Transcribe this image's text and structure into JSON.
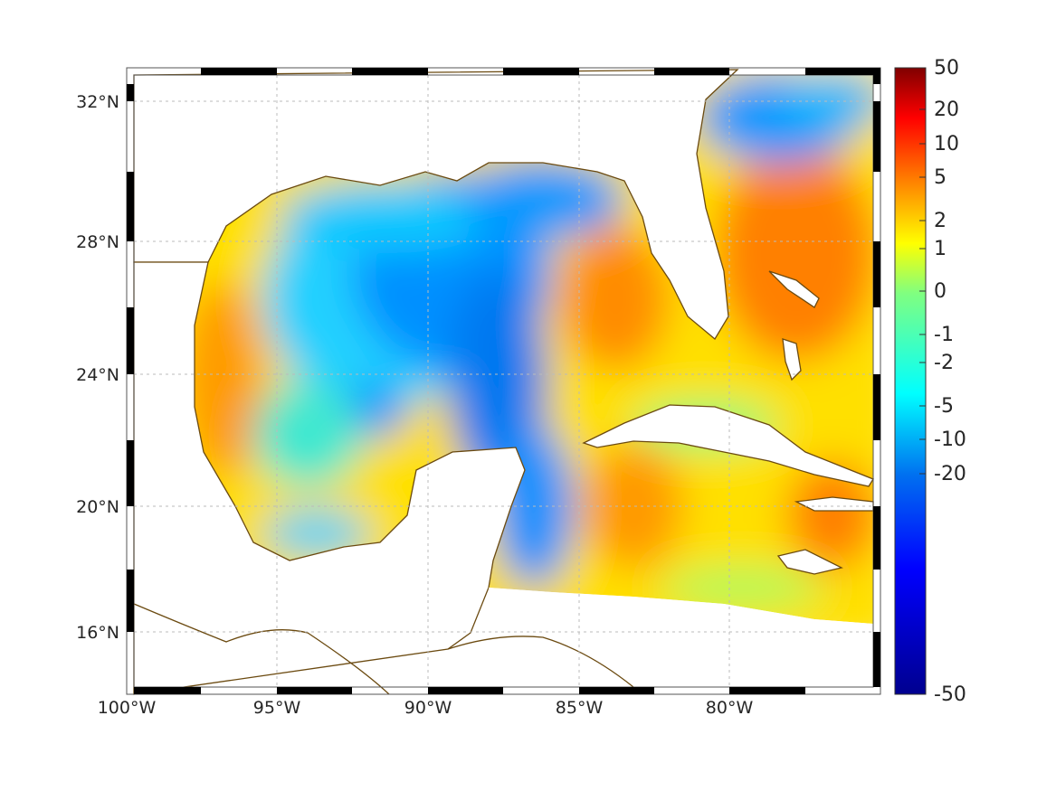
{
  "map": {
    "lon_labels": [
      "100°W",
      "95°W",
      "90°W",
      "85°W",
      "80°W"
    ],
    "lat_labels": [
      "32°N",
      "28°N",
      "24°N",
      "20°N",
      "16°N"
    ],
    "coastline_color": "#6b4a10",
    "grid": "dotted"
  },
  "colorbar": {
    "ticks": [
      "50",
      "20",
      "10",
      "5",
      "2",
      "1",
      "0",
      "-1",
      "-2",
      "-5",
      "-10",
      "-20",
      "-50"
    ],
    "colormap": "jet",
    "range": [
      -50,
      50
    ]
  }
}
